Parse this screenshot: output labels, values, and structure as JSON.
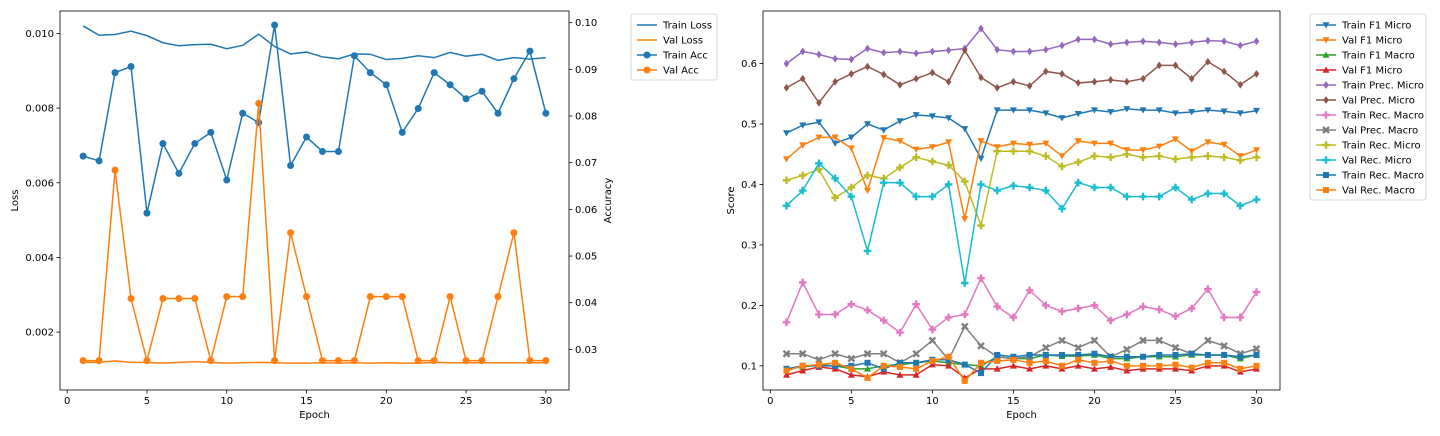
{
  "chart_data": [
    {
      "type": "line",
      "xlabel": "Epoch",
      "ylabel": "Loss",
      "y2label": "Accuracy",
      "xlim": [
        -0.45,
        31.45
      ],
      "ylim": [
        0.00045,
        0.0106
      ],
      "y2lim": [
        0.0213,
        0.1025
      ],
      "xticks": [
        0,
        5,
        10,
        15,
        20,
        25,
        30
      ],
      "xtick_labels": [
        "0",
        "5",
        "10",
        "15",
        "20",
        "25",
        "30"
      ],
      "yticks": [
        0.002,
        0.004,
        0.006,
        0.008,
        0.01
      ],
      "ytick_labels": [
        "0.002",
        "0.004",
        "0.006",
        "0.008",
        "0.010"
      ],
      "y2ticks": [
        0.03,
        0.04,
        0.05,
        0.06,
        0.07,
        0.08,
        0.09,
        0.1
      ],
      "y2tick_labels": [
        "0.03",
        "0.04",
        "0.05",
        "0.06",
        "0.07",
        "0.08",
        "0.09",
        "0.10"
      ],
      "legend": "outside-top-right",
      "x": [
        1,
        2,
        3,
        4,
        5,
        6,
        7,
        8,
        9,
        10,
        11,
        12,
        13,
        14,
        15,
        16,
        17,
        18,
        19,
        20,
        21,
        22,
        23,
        24,
        25,
        26,
        27,
        28,
        29,
        30
      ],
      "series": [
        {
          "name": "Train Loss",
          "axis": "left",
          "color": "#1f77b4",
          "marker": "none",
          "values": [
            0.0102,
            0.00995,
            0.00997,
            0.01006,
            0.00994,
            0.00975,
            0.00967,
            0.0097,
            0.00971,
            0.00959,
            0.00968,
            0.00998,
            0.00965,
            0.00945,
            0.0095,
            0.00937,
            0.00932,
            0.00945,
            0.00944,
            0.0093,
            0.00933,
            0.0094,
            0.00935,
            0.00949,
            0.00939,
            0.00944,
            0.00928,
            0.00935,
            0.00931,
            0.00935
          ]
        },
        {
          "name": "Val Loss",
          "axis": "left",
          "color": "#ff7f0e",
          "marker": "none",
          "values": [
            0.00119,
            0.00119,
            0.00123,
            0.00119,
            0.00119,
            0.00117,
            0.00119,
            0.00121,
            0.00119,
            0.00117,
            0.00118,
            0.00119,
            0.00118,
            0.00117,
            0.00117,
            0.00118,
            0.00117,
            0.00118,
            0.00117,
            0.00118,
            0.00117,
            0.00117,
            0.00119,
            0.00118,
            0.00118,
            0.00118,
            0.00118,
            0.00118,
            0.00118,
            0.00118
          ]
        },
        {
          "name": "Train Acc",
          "axis": "right",
          "color": "#1f77b4",
          "marker": "circle",
          "values": [
            0.0714,
            0.0704,
            0.0893,
            0.0906,
            0.0592,
            0.0741,
            0.0677,
            0.0741,
            0.0765,
            0.0663,
            0.0806,
            0.0786,
            0.0995,
            0.0694,
            0.0755,
            0.0724,
            0.0724,
            0.0929,
            0.0893,
            0.0867,
            0.0765,
            0.0816,
            0.0893,
            0.0867,
            0.0837,
            0.0853,
            0.0806,
            0.088,
            0.0939,
            0.0806
          ]
        },
        {
          "name": "Val Acc",
          "axis": "right",
          "color": "#ff7f0e",
          "marker": "circle",
          "values": [
            0.0276,
            0.0276,
            0.0684,
            0.0409,
            0.0276,
            0.0409,
            0.0409,
            0.0409,
            0.0276,
            0.0413,
            0.0413,
            0.0827,
            0.0276,
            0.055,
            0.0413,
            0.0276,
            0.0276,
            0.0276,
            0.0413,
            0.0413,
            0.0413,
            0.0276,
            0.0276,
            0.0413,
            0.0276,
            0.0276,
            0.0413,
            0.055,
            0.0276,
            0.0276
          ]
        }
      ]
    },
    {
      "type": "line",
      "xlabel": "Epoch",
      "ylabel": "Score",
      "xlim": [
        -0.45,
        31.45
      ],
      "ylim": [
        0.06,
        0.687
      ],
      "xticks": [
        0,
        5,
        10,
        15,
        20,
        25,
        30
      ],
      "xtick_labels": [
        "0",
        "5",
        "10",
        "15",
        "20",
        "25",
        "30"
      ],
      "yticks": [
        0.1,
        0.2,
        0.3,
        0.4,
        0.5,
        0.6
      ],
      "ytick_labels": [
        "0.1",
        "0.2",
        "0.3",
        "0.4",
        "0.5",
        "0.6"
      ],
      "legend": "outside-top-right",
      "x": [
        1,
        2,
        3,
        4,
        5,
        6,
        7,
        8,
        9,
        10,
        11,
        12,
        13,
        14,
        15,
        16,
        17,
        18,
        19,
        20,
        21,
        22,
        23,
        24,
        25,
        26,
        27,
        28,
        29,
        30
      ],
      "series": [
        {
          "name": "Train F1 Micro",
          "color": "#1f77b4",
          "marker": "tri-down",
          "values": [
            0.485,
            0.498,
            0.503,
            0.468,
            0.478,
            0.5,
            0.49,
            0.505,
            0.515,
            0.513,
            0.51,
            0.492,
            0.443,
            0.523,
            0.523,
            0.523,
            0.518,
            0.51,
            0.517,
            0.523,
            0.52,
            0.525,
            0.523,
            0.523,
            0.518,
            0.52,
            0.523,
            0.521,
            0.518,
            0.522
          ]
        },
        {
          "name": "Val F1 Micro",
          "color": "#ff7f0e",
          "marker": "tri-down",
          "values": [
            0.442,
            0.465,
            0.478,
            0.478,
            0.46,
            0.39,
            0.477,
            0.472,
            0.458,
            0.462,
            0.47,
            0.343,
            0.472,
            0.462,
            0.468,
            0.466,
            0.468,
            0.447,
            0.472,
            0.468,
            0.468,
            0.457,
            0.457,
            0.463,
            0.475,
            0.455,
            0.47,
            0.466,
            0.447,
            0.457
          ]
        },
        {
          "name": "Train F1 Macro",
          "color": "#2ca02c",
          "marker": "tri-up",
          "values": [
            0.095,
            0.098,
            0.102,
            0.1,
            0.095,
            0.095,
            0.1,
            0.102,
            0.105,
            0.108,
            0.105,
            0.102,
            0.1,
            0.115,
            0.112,
            0.112,
            0.118,
            0.116,
            0.116,
            0.118,
            0.112,
            0.112,
            0.115,
            0.115,
            0.115,
            0.118,
            0.118,
            0.118,
            0.112,
            0.118
          ]
        },
        {
          "name": "Val F1 Micro",
          "color": "#d62728",
          "marker": "tri-up",
          "values": [
            0.085,
            0.092,
            0.098,
            0.095,
            0.085,
            0.082,
            0.09,
            0.085,
            0.085,
            0.102,
            0.1,
            0.08,
            0.095,
            0.095,
            0.1,
            0.095,
            0.1,
            0.095,
            0.1,
            0.095,
            0.098,
            0.092,
            0.095,
            0.095,
            0.095,
            0.092,
            0.1,
            0.1,
            0.09,
            0.095
          ]
        },
        {
          "name": "Train Prec. Micro",
          "color": "#9467bd",
          "marker": "diamond",
          "values": [
            0.6,
            0.62,
            0.615,
            0.608,
            0.607,
            0.625,
            0.618,
            0.62,
            0.617,
            0.62,
            0.622,
            0.625,
            0.658,
            0.623,
            0.62,
            0.62,
            0.623,
            0.63,
            0.64,
            0.64,
            0.632,
            0.635,
            0.637,
            0.635,
            0.632,
            0.635,
            0.638,
            0.637,
            0.63,
            0.637
          ]
        },
        {
          "name": "Val Prec. Micro",
          "color": "#8c564b",
          "marker": "diamond",
          "values": [
            0.56,
            0.575,
            0.535,
            0.57,
            0.583,
            0.595,
            0.582,
            0.565,
            0.575,
            0.585,
            0.57,
            0.622,
            0.577,
            0.56,
            0.57,
            0.563,
            0.587,
            0.583,
            0.568,
            0.57,
            0.573,
            0.57,
            0.575,
            0.597,
            0.597,
            0.575,
            0.603,
            0.587,
            0.565,
            0.583
          ]
        },
        {
          "name": "Train Rec. Macro",
          "color": "#e377c2",
          "marker": "plus",
          "values": [
            0.172,
            0.238,
            0.185,
            0.185,
            0.202,
            0.192,
            0.175,
            0.155,
            0.202,
            0.16,
            0.18,
            0.185,
            0.245,
            0.198,
            0.18,
            0.225,
            0.2,
            0.19,
            0.195,
            0.2,
            0.175,
            0.185,
            0.198,
            0.193,
            0.182,
            0.195,
            0.227,
            0.18,
            0.18,
            0.222
          ]
        },
        {
          "name": "Val Prec. Macro",
          "color": "#7f7f7f",
          "marker": "x",
          "values": [
            0.12,
            0.12,
            0.11,
            0.12,
            0.112,
            0.12,
            0.12,
            0.105,
            0.12,
            0.142,
            0.11,
            0.165,
            0.133,
            0.115,
            0.112,
            0.115,
            0.13,
            0.142,
            0.13,
            0.142,
            0.115,
            0.127,
            0.142,
            0.142,
            0.13,
            0.12,
            0.142,
            0.133,
            0.12,
            0.128
          ]
        },
        {
          "name": "Train Rec. Micro",
          "color": "#bcbd22",
          "marker": "plus",
          "values": [
            0.407,
            0.415,
            0.425,
            0.378,
            0.395,
            0.415,
            0.41,
            0.428,
            0.445,
            0.438,
            0.432,
            0.405,
            0.332,
            0.455,
            0.455,
            0.455,
            0.447,
            0.43,
            0.437,
            0.447,
            0.445,
            0.45,
            0.445,
            0.447,
            0.442,
            0.445,
            0.447,
            0.445,
            0.44,
            0.445
          ]
        },
        {
          "name": "Val Rec. Micro",
          "color": "#17becf",
          "marker": "plus",
          "values": [
            0.365,
            0.39,
            0.435,
            0.41,
            0.38,
            0.29,
            0.403,
            0.403,
            0.38,
            0.38,
            0.4,
            0.237,
            0.4,
            0.39,
            0.398,
            0.395,
            0.39,
            0.36,
            0.403,
            0.395,
            0.395,
            0.38,
            0.38,
            0.38,
            0.395,
            0.375,
            0.385,
            0.385,
            0.365,
            0.375
          ]
        },
        {
          "name": "Train Rec. Macro",
          "color": "#1f77b4",
          "marker": "square",
          "values": [
            0.095,
            0.1,
            0.1,
            0.1,
            0.1,
            0.105,
            0.095,
            0.105,
            0.105,
            0.11,
            0.11,
            0.102,
            0.088,
            0.118,
            0.115,
            0.118,
            0.118,
            0.118,
            0.118,
            0.12,
            0.115,
            0.115,
            0.115,
            0.118,
            0.118,
            0.12,
            0.118,
            0.118,
            0.115,
            0.118
          ]
        },
        {
          "name": "Val Rec. Macro",
          "color": "#ff7f0e",
          "marker": "square",
          "values": [
            0.092,
            0.1,
            0.102,
            0.105,
            0.095,
            0.08,
            0.1,
            0.098,
            0.095,
            0.108,
            0.115,
            0.075,
            0.105,
            0.108,
            0.11,
            0.105,
            0.108,
            0.1,
            0.11,
            0.105,
            0.108,
            0.1,
            0.1,
            0.1,
            0.102,
            0.097,
            0.105,
            0.105,
            0.095,
            0.1
          ]
        }
      ]
    }
  ]
}
